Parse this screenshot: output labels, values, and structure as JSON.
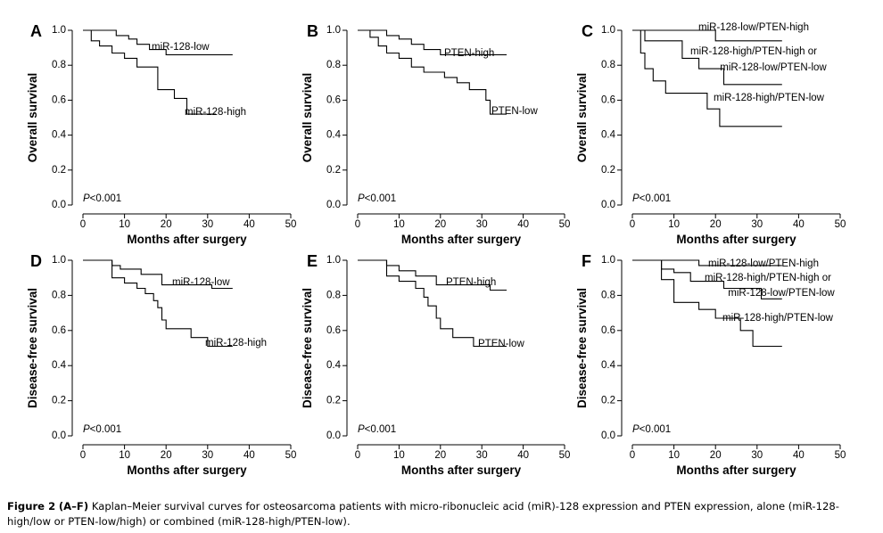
{
  "caption": {
    "label": "Figure 2",
    "panels": "(A–F)",
    "text": "Kaplan–Meier survival curves for osteosarcoma patients with micro-ribonucleic acid (miR)-128 expression and PTEN expression, alone (miR-128-high/low or PTEN-low/high) or combined (miR-128-high/PTEN-low)."
  },
  "chart_data": [
    {
      "panel": "A",
      "type": "line",
      "step": true,
      "ylabel": "Overall survival",
      "xlabel": "Months after surgery",
      "xlim": [
        0,
        50
      ],
      "ylim": [
        0,
        1.0
      ],
      "xticks": [
        0,
        10,
        20,
        30,
        40,
        50
      ],
      "yticks": [
        0.0,
        0.2,
        0.4,
        0.6,
        0.8,
        1.0
      ],
      "annotation": "P<0.001",
      "series": [
        {
          "name": "miR-128-low",
          "x": [
            0,
            8,
            11,
            13,
            16,
            20,
            36
          ],
          "y": [
            1.0,
            0.97,
            0.95,
            0.92,
            0.89,
            0.86,
            0.86
          ]
        },
        {
          "name": "miR-128-high",
          "x": [
            0,
            2,
            4,
            7,
            10,
            13,
            18,
            22,
            25,
            32
          ],
          "y": [
            1.0,
            0.94,
            0.91,
            0.87,
            0.84,
            0.79,
            0.66,
            0.61,
            0.52,
            0.52
          ]
        }
      ]
    },
    {
      "panel": "B",
      "type": "line",
      "step": true,
      "ylabel": "Overall survival",
      "xlabel": "Months after surgery",
      "xlim": [
        0,
        50
      ],
      "ylim": [
        0,
        1.0
      ],
      "xticks": [
        0,
        10,
        20,
        30,
        40,
        50
      ],
      "yticks": [
        0.0,
        0.2,
        0.4,
        0.6,
        0.8,
        1.0
      ],
      "annotation": "P<0.001",
      "series": [
        {
          "name": "PTEN-high",
          "x": [
            0,
            7,
            10,
            13,
            16,
            20,
            36
          ],
          "y": [
            1.0,
            0.97,
            0.95,
            0.92,
            0.89,
            0.86,
            0.86
          ]
        },
        {
          "name": "PTEN-low",
          "x": [
            0,
            3,
            5,
            7,
            10,
            13,
            16,
            21,
            24,
            27,
            31,
            32,
            36
          ],
          "y": [
            1.0,
            0.96,
            0.91,
            0.87,
            0.84,
            0.79,
            0.76,
            0.73,
            0.7,
            0.66,
            0.6,
            0.52,
            0.52
          ]
        }
      ]
    },
    {
      "panel": "C",
      "type": "line",
      "step": true,
      "ylabel": "Overall survival",
      "xlabel": "Months after surgery",
      "xlim": [
        0,
        50
      ],
      "ylim": [
        0,
        1.0
      ],
      "xticks": [
        0,
        10,
        20,
        30,
        40,
        50
      ],
      "yticks": [
        0.0,
        0.2,
        0.4,
        0.6,
        0.8,
        1.0
      ],
      "annotation": "P<0.001",
      "series": [
        {
          "name": "miR-128-low/PTEN-high",
          "x": [
            0,
            20,
            36
          ],
          "y": [
            1.0,
            0.94,
            0.94
          ]
        },
        {
          "name": "miR-128-high/PTEN-high or miR-128-low/PTEN-low",
          "x": [
            0,
            3,
            12,
            16,
            22,
            36
          ],
          "y": [
            1.0,
            0.94,
            0.84,
            0.78,
            0.69,
            0.69
          ]
        },
        {
          "name": "miR-128-high/PTEN-low",
          "x": [
            0,
            2,
            3,
            5,
            8,
            13,
            18,
            21,
            36
          ],
          "y": [
            1.0,
            0.87,
            0.78,
            0.71,
            0.64,
            0.64,
            0.55,
            0.45,
            0.45
          ]
        }
      ]
    },
    {
      "panel": "D",
      "type": "line",
      "step": true,
      "ylabel": "Disease-free survival",
      "xlabel": "Months after surgery",
      "xlim": [
        0,
        50
      ],
      "ylim": [
        0,
        1.0
      ],
      "xticks": [
        0,
        10,
        20,
        30,
        40,
        50
      ],
      "yticks": [
        0.0,
        0.2,
        0.4,
        0.6,
        0.8,
        1.0
      ],
      "annotation": "P<0.001",
      "series": [
        {
          "name": "miR-128-low",
          "x": [
            0,
            7,
            9,
            14,
            19,
            31,
            36
          ],
          "y": [
            1.0,
            0.97,
            0.95,
            0.92,
            0.86,
            0.84,
            0.84
          ]
        },
        {
          "name": "miR-128-high",
          "x": [
            0,
            7,
            10,
            13,
            15,
            17,
            18,
            19,
            20,
            26,
            30,
            36
          ],
          "y": [
            1.0,
            0.9,
            0.87,
            0.84,
            0.81,
            0.77,
            0.73,
            0.66,
            0.61,
            0.56,
            0.51,
            0.51
          ]
        }
      ]
    },
    {
      "panel": "E",
      "type": "line",
      "step": true,
      "ylabel": "Disease-free survival",
      "xlabel": "Months after surgery",
      "xlim": [
        0,
        50
      ],
      "ylim": [
        0,
        1.0
      ],
      "xticks": [
        0,
        10,
        20,
        30,
        40,
        50
      ],
      "yticks": [
        0.0,
        0.2,
        0.4,
        0.6,
        0.8,
        1.0
      ],
      "annotation": "P<0.001",
      "series": [
        {
          "name": "PTEN-high",
          "x": [
            0,
            7,
            10,
            14,
            19,
            32,
            36
          ],
          "y": [
            1.0,
            0.97,
            0.94,
            0.91,
            0.86,
            0.83,
            0.83
          ]
        },
        {
          "name": "PTEN-low",
          "x": [
            0,
            7,
            10,
            14,
            16,
            17,
            19,
            20,
            23,
            28,
            36
          ],
          "y": [
            1.0,
            0.91,
            0.88,
            0.84,
            0.79,
            0.74,
            0.67,
            0.61,
            0.56,
            0.51,
            0.51
          ]
        }
      ]
    },
    {
      "panel": "F",
      "type": "line",
      "step": true,
      "ylabel": "Disease-free survival",
      "xlabel": "Months after surgery",
      "xlim": [
        0,
        50
      ],
      "ylim": [
        0,
        1.0
      ],
      "xticks": [
        0,
        10,
        20,
        30,
        40,
        50
      ],
      "yticks": [
        0.0,
        0.2,
        0.4,
        0.6,
        0.8,
        1.0
      ],
      "annotation": "P<0.001",
      "series": [
        {
          "name": "miR-128-low/PTEN-high",
          "x": [
            0,
            16,
            20,
            36
          ],
          "y": [
            1.0,
            0.97,
            0.97,
            0.97
          ]
        },
        {
          "name": "miR-128-high/PTEN-high or miR-128-low/PTEN-low",
          "x": [
            0,
            7,
            10,
            14,
            22,
            31,
            36
          ],
          "y": [
            1.0,
            0.95,
            0.93,
            0.88,
            0.84,
            0.78,
            0.78
          ]
        },
        {
          "name": "miR-128-high/PTEN-low",
          "x": [
            0,
            7,
            10,
            16,
            20,
            26,
            29,
            36
          ],
          "y": [
            1.0,
            0.89,
            0.76,
            0.72,
            0.67,
            0.6,
            0.51,
            0.51
          ]
        }
      ]
    }
  ]
}
